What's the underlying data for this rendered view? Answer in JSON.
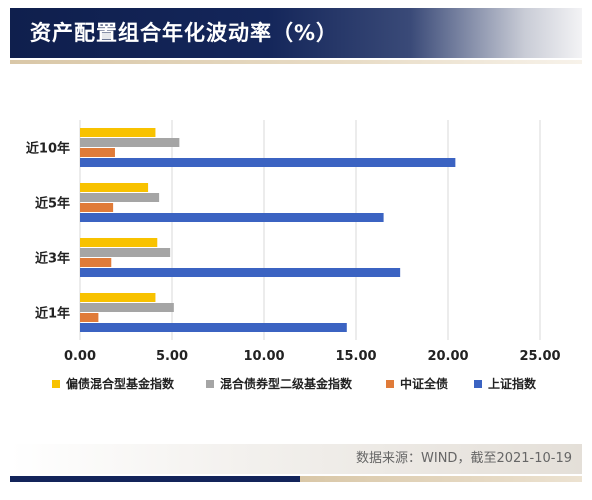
{
  "header": {
    "title": "资产配置组合年化波动率（%）"
  },
  "footer": {
    "source": "数据来源：WIND，截至2021-10-19"
  },
  "colors": {
    "series": [
      "#f8c200",
      "#a5a5a5",
      "#e07b39",
      "#3b63c2"
    ],
    "grid": "#d9d9d9",
    "header_dark": "#13245a",
    "accent_gold": "#d9c7a7"
  },
  "chart_data": {
    "type": "bar",
    "orientation": "horizontal",
    "categories": [
      "近10年",
      "近5年",
      "近3年",
      "近1年"
    ],
    "series": [
      {
        "name": "偏债混合型基金指数",
        "values": [
          4.1,
          3.7,
          4.2,
          4.1
        ]
      },
      {
        "name": "混合债券型二级基金指数",
        "values": [
          5.4,
          4.3,
          4.9,
          5.1
        ]
      },
      {
        "name": "中证全债",
        "values": [
          1.9,
          1.8,
          1.7,
          1.0
        ]
      },
      {
        "name": "上证指数",
        "values": [
          20.4,
          16.5,
          17.4,
          14.5
        ]
      }
    ],
    "x_ticks": [
      "0.00",
      "5.00",
      "10.00",
      "15.00",
      "20.00",
      "25.00"
    ],
    "xlim": [
      0,
      25
    ],
    "title": "",
    "xlabel": "",
    "ylabel": "",
    "grid": true,
    "legend_position": "bottom"
  }
}
